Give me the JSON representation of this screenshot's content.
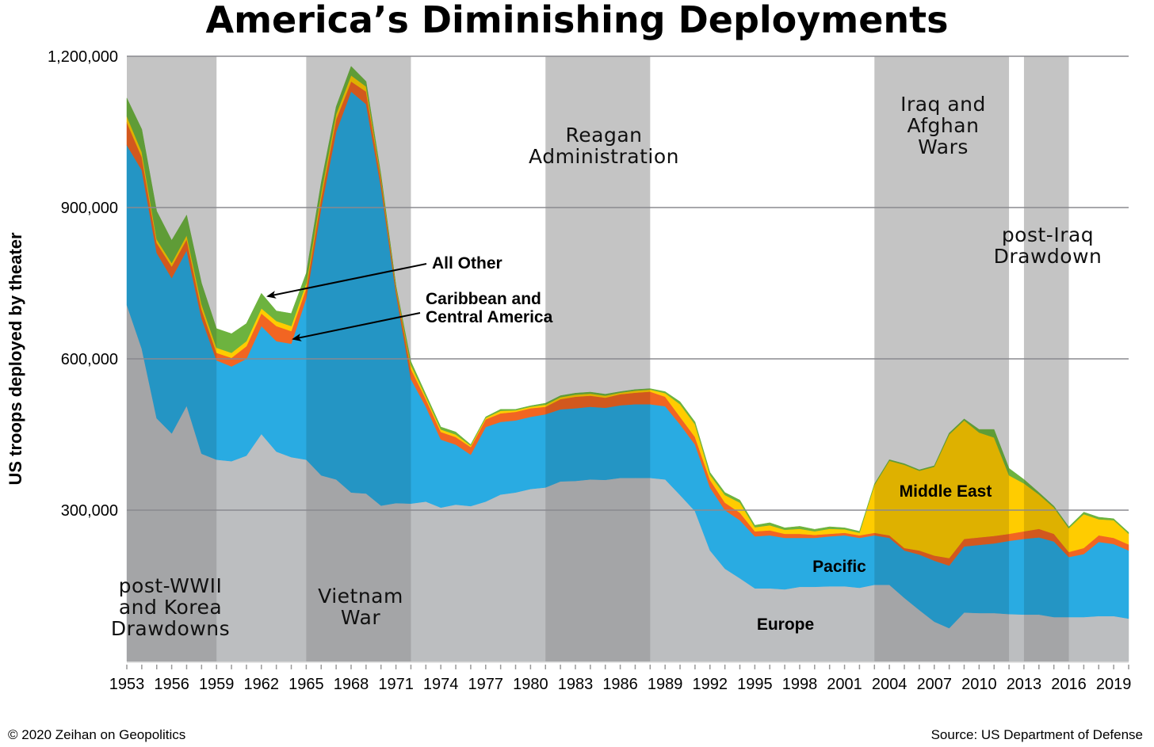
{
  "chart_data": {
    "type": "area",
    "stacked": true,
    "title": "America’s Diminishing Deployments",
    "xlabel": "",
    "ylabel": "US troops deployed by theater",
    "ylim": [
      0,
      1200000
    ],
    "xlim": [
      1953,
      2020
    ],
    "grid": true,
    "y_ticks": [
      "300,000",
      "600,000",
      "900,000",
      "1,200,000"
    ],
    "y_tick_values": [
      300000,
      600000,
      900000,
      1200000
    ],
    "x_ticks": [
      "1953",
      "1956",
      "1959",
      "1962",
      "1965",
      "1968",
      "1971",
      "1974",
      "1977",
      "1980",
      "1983",
      "1986",
      "1989",
      "1992",
      "1995",
      "1998",
      "2001",
      "2004",
      "2007",
      "2010",
      "2013",
      "2016",
      "2019"
    ],
    "x": [
      1953,
      1954,
      1955,
      1956,
      1957,
      1958,
      1959,
      1960,
      1961,
      1962,
      1963,
      1964,
      1965,
      1966,
      1967,
      1968,
      1969,
      1970,
      1971,
      1972,
      1973,
      1974,
      1975,
      1976,
      1977,
      1978,
      1979,
      1980,
      1981,
      1982,
      1983,
      1984,
      1985,
      1986,
      1987,
      1988,
      1989,
      1990,
      1991,
      1992,
      1993,
      1994,
      1995,
      1996,
      1997,
      1998,
      1999,
      2000,
      2001,
      2002,
      2003,
      2004,
      2005,
      2006,
      2007,
      2008,
      2009,
      2010,
      2011,
      2012,
      2013,
      2014,
      2015,
      2016,
      2017,
      2018,
      2019,
      2020
    ],
    "units_note": "values in thousands of troops",
    "series": [
      {
        "name": "Europe",
        "color": "#bcbec0",
        "values": [
          707,
          620,
          482,
          452,
          507,
          412,
          400,
          397,
          408,
          451,
          416,
          405,
          400,
          369,
          361,
          335,
          333,
          309,
          314,
          313,
          317,
          305,
          311,
          308,
          317,
          331,
          335,
          342,
          345,
          357,
          358,
          361,
          360,
          364,
          364,
          364,
          361,
          330,
          298,
          220,
          184,
          165,
          145,
          145,
          143,
          148,
          148,
          149,
          149,
          146,
          152,
          152,
          126,
          102,
          79,
          66,
          97,
          96,
          96,
          94,
          93,
          93,
          88,
          88,
          88,
          90,
          90,
          85
        ]
      },
      {
        "name": "Pacific",
        "color": "#29abe2",
        "values": [
          317,
          354,
          328,
          308,
          308,
          268,
          197,
          188,
          192,
          214,
          219,
          225,
          320,
          531,
          689,
          795,
          772,
          631,
          416,
          247,
          188,
          135,
          119,
          102,
          148,
          144,
          143,
          143,
          145,
          143,
          144,
          144,
          143,
          144,
          146,
          146,
          145,
          140,
          132,
          125,
          116,
          115,
          103,
          105,
          102,
          97,
          97,
          99,
          101,
          99,
          98,
          93,
          94,
          110,
          121,
          124,
          131,
          135,
          138,
          145,
          150,
          153,
          150,
          119,
          125,
          147,
          143,
          135
        ]
      },
      {
        "name": "Caribbean and Central America",
        "color": "#f26522",
        "values": [
          45,
          26,
          20,
          23,
          22,
          18,
          15,
          17,
          25,
          25,
          30,
          25,
          20,
          20,
          25,
          20,
          25,
          15,
          10,
          20,
          15,
          15,
          15,
          15,
          15,
          17,
          17,
          17,
          15,
          20,
          23,
          22,
          20,
          22,
          23,
          25,
          19,
          15,
          15,
          15,
          15,
          15,
          10,
          10,
          8,
          8,
          6,
          5,
          5,
          5,
          5,
          5,
          5,
          8,
          10,
          15,
          15,
          15,
          15,
          14,
          15,
          17,
          15,
          10,
          12,
          13,
          12,
          12
        ]
      },
      {
        "name": "Middle East",
        "color": "#ffcc00",
        "values": [
          12,
          10,
          7,
          7,
          8,
          10,
          10,
          10,
          10,
          10,
          10,
          10,
          10,
          10,
          10,
          12,
          10,
          5,
          3,
          8,
          5,
          5,
          5,
          3,
          3,
          5,
          3,
          3,
          4,
          4,
          4,
          4,
          4,
          3,
          4,
          4,
          7,
          25,
          25,
          10,
          15,
          20,
          8,
          10,
          8,
          10,
          7,
          10,
          7,
          5,
          95,
          148,
          165,
          158,
          176,
          245,
          235,
          208,
          195,
          116,
          95,
          68,
          52,
          47,
          67,
          32,
          35,
          21
        ]
      },
      {
        "name": "All Other",
        "color": "#6db33f",
        "values": [
          36,
          45,
          56,
          45,
          40,
          42,
          38,
          38,
          35,
          30,
          20,
          25,
          20,
          20,
          15,
          18,
          10,
          5,
          2,
          7,
          5,
          5,
          5,
          2,
          2,
          3,
          2,
          2,
          3,
          3,
          3,
          3,
          3,
          2,
          2,
          2,
          3,
          5,
          5,
          5,
          5,
          5,
          4,
          5,
          4,
          5,
          4,
          4,
          3,
          3,
          2,
          2,
          2,
          2,
          2,
          3,
          3,
          6,
          16,
          14,
          8,
          4,
          3,
          3,
          4,
          4,
          3,
          3
        ]
      }
    ],
    "shaded_periods": [
      {
        "start": 1953,
        "end": 1959,
        "label": [
          "post-WWII",
          "and Korea",
          "Drawdowns"
        ]
      },
      {
        "start": 1965,
        "end": 1972,
        "label": [
          "Vietnam",
          "War"
        ]
      },
      {
        "start": 1981,
        "end": 1988,
        "label": [
          "Reagan",
          "Administration"
        ]
      },
      {
        "start": 2003,
        "end": 2012,
        "label": [
          "Iraq and",
          "Afghan",
          "Wars"
        ]
      },
      {
        "start": 2013,
        "end": 2016,
        "label": [
          "post-Iraq",
          "Drawdown"
        ]
      }
    ],
    "annotations": {
      "all_other": "All Other",
      "caribbean": [
        "Caribbean and",
        "Central America"
      ],
      "middle_east": "Middle East",
      "pacific": "Pacific",
      "europe": "Europe"
    }
  },
  "footer": {
    "copyright": "© 2020 Zeihan on Geopolitics",
    "source": "Source: US Department of Defense"
  }
}
